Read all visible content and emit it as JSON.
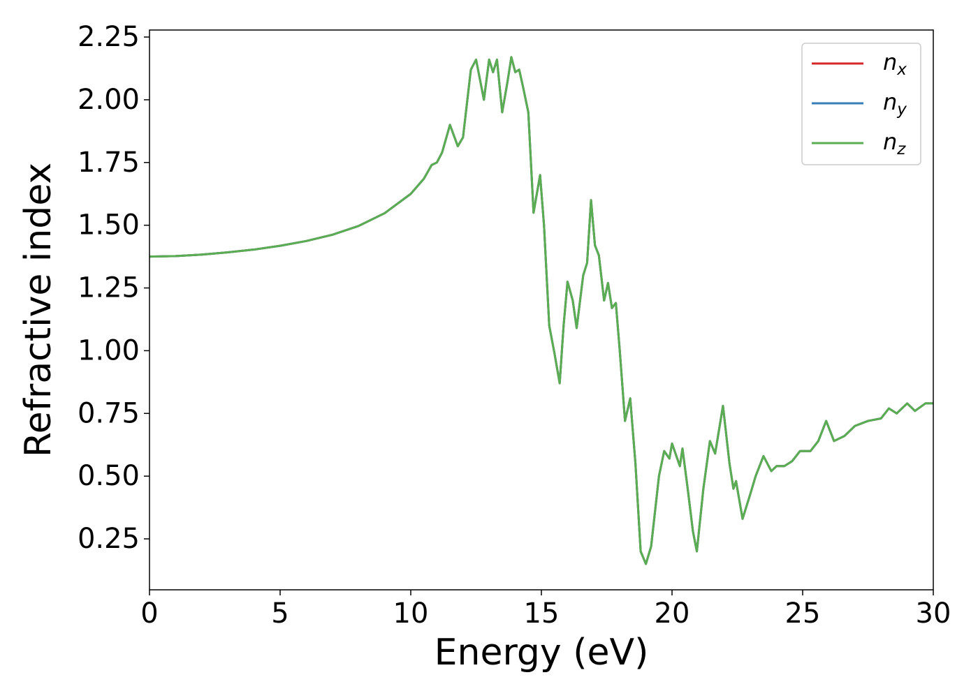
{
  "chart_data": {
    "type": "line",
    "x_label": "Energy (eV)",
    "y_label": "Refractive index",
    "x": [
      0,
      1,
      2,
      3,
      4,
      5,
      6,
      7,
      8,
      9,
      10,
      10.5,
      10.8,
      11.0,
      11.2,
      11.5,
      11.8,
      12.0,
      12.3,
      12.5,
      12.8,
      13.0,
      13.15,
      13.3,
      13.5,
      13.7,
      13.85,
      14.0,
      14.15,
      14.3,
      14.5,
      14.7,
      14.95,
      15.1,
      15.3,
      15.5,
      15.7,
      15.85,
      16.0,
      16.2,
      16.35,
      16.6,
      16.75,
      16.9,
      17.05,
      17.2,
      17.4,
      17.55,
      17.7,
      17.85,
      18.0,
      18.2,
      18.4,
      18.6,
      18.8,
      19.0,
      19.2,
      19.5,
      19.7,
      19.9,
      20.0,
      20.3,
      20.4,
      20.6,
      20.8,
      20.95,
      21.2,
      21.45,
      21.65,
      21.95,
      22.2,
      22.35,
      22.45,
      22.7,
      23.0,
      23.2,
      23.5,
      23.8,
      24.0,
      24.3,
      24.6,
      24.9,
      25.3,
      25.6,
      25.9,
      26.2,
      26.6,
      27.0,
      27.5,
      28.0,
      28.3,
      28.6,
      29.0,
      29.3,
      29.7,
      30.0
    ],
    "series": [
      {
        "name": "nx",
        "color": "#d62728",
        "values": [
          1.375,
          1.377,
          1.383,
          1.392,
          1.403,
          1.418,
          1.437,
          1.462,
          1.497,
          1.548,
          1.625,
          1.685,
          1.74,
          1.75,
          1.79,
          1.9,
          1.815,
          1.85,
          2.12,
          2.16,
          2.0,
          2.16,
          2.11,
          2.16,
          1.95,
          2.07,
          2.17,
          2.11,
          2.12,
          2.05,
          1.95,
          1.55,
          1.7,
          1.5,
          1.1,
          0.99,
          0.87,
          1.1,
          1.275,
          1.2,
          1.09,
          1.3,
          1.35,
          1.6,
          1.42,
          1.38,
          1.2,
          1.27,
          1.17,
          1.19,
          1.0,
          0.72,
          0.81,
          0.55,
          0.2,
          0.15,
          0.22,
          0.5,
          0.6,
          0.57,
          0.63,
          0.54,
          0.61,
          0.45,
          0.28,
          0.2,
          0.45,
          0.64,
          0.59,
          0.78,
          0.55,
          0.45,
          0.48,
          0.33,
          0.43,
          0.5,
          0.58,
          0.52,
          0.54,
          0.54,
          0.56,
          0.6,
          0.6,
          0.64,
          0.72,
          0.64,
          0.66,
          0.7,
          0.72,
          0.73,
          0.77,
          0.75,
          0.79,
          0.76,
          0.79,
          0.79
        ]
      },
      {
        "name": "ny",
        "color": "#377eb8",
        "values": [
          1.375,
          1.377,
          1.383,
          1.392,
          1.403,
          1.418,
          1.437,
          1.462,
          1.497,
          1.548,
          1.625,
          1.685,
          1.74,
          1.75,
          1.79,
          1.9,
          1.815,
          1.85,
          2.12,
          2.16,
          2.0,
          2.16,
          2.11,
          2.16,
          1.95,
          2.07,
          2.17,
          2.11,
          2.12,
          2.05,
          1.95,
          1.55,
          1.7,
          1.5,
          1.1,
          0.99,
          0.87,
          1.1,
          1.275,
          1.2,
          1.09,
          1.3,
          1.35,
          1.6,
          1.42,
          1.38,
          1.2,
          1.27,
          1.17,
          1.19,
          1.0,
          0.72,
          0.81,
          0.55,
          0.2,
          0.15,
          0.22,
          0.5,
          0.6,
          0.57,
          0.63,
          0.54,
          0.61,
          0.45,
          0.28,
          0.2,
          0.45,
          0.64,
          0.59,
          0.78,
          0.55,
          0.45,
          0.48,
          0.33,
          0.43,
          0.5,
          0.58,
          0.52,
          0.54,
          0.54,
          0.56,
          0.6,
          0.6,
          0.64,
          0.72,
          0.64,
          0.66,
          0.7,
          0.72,
          0.73,
          0.77,
          0.75,
          0.79,
          0.76,
          0.79,
          0.79
        ]
      },
      {
        "name": "nz",
        "color": "#5aad52",
        "values": [
          1.375,
          1.377,
          1.383,
          1.392,
          1.403,
          1.418,
          1.437,
          1.462,
          1.497,
          1.548,
          1.625,
          1.685,
          1.74,
          1.75,
          1.79,
          1.9,
          1.815,
          1.85,
          2.12,
          2.16,
          2.0,
          2.16,
          2.11,
          2.16,
          1.95,
          2.07,
          2.17,
          2.11,
          2.12,
          2.05,
          1.95,
          1.55,
          1.7,
          1.5,
          1.1,
          0.99,
          0.87,
          1.1,
          1.275,
          1.2,
          1.09,
          1.3,
          1.35,
          1.6,
          1.42,
          1.38,
          1.2,
          1.27,
          1.17,
          1.19,
          1.0,
          0.72,
          0.81,
          0.55,
          0.2,
          0.15,
          0.22,
          0.5,
          0.6,
          0.57,
          0.63,
          0.54,
          0.61,
          0.45,
          0.28,
          0.2,
          0.45,
          0.64,
          0.59,
          0.78,
          0.55,
          0.45,
          0.48,
          0.33,
          0.43,
          0.5,
          0.58,
          0.52,
          0.54,
          0.54,
          0.56,
          0.6,
          0.6,
          0.64,
          0.72,
          0.64,
          0.66,
          0.7,
          0.72,
          0.73,
          0.77,
          0.75,
          0.79,
          0.76,
          0.79,
          0.79
        ]
      }
    ],
    "xlim": [
      0,
      30
    ],
    "xticks": [
      0,
      5,
      10,
      15,
      20,
      25,
      30
    ],
    "ylim": [
      0.047,
      2.278
    ],
    "yticks": [
      0.25,
      {
        "value": 0.5,
        "label": "0.50"
      },
      0.75,
      {
        "value": 1.0,
        "label": "1.00"
      },
      1.25,
      {
        "value": 1.5,
        "label": "1.50"
      },
      1.75,
      {
        "value": 2.0,
        "label": "2.00"
      },
      2.25
    ],
    "grid": false,
    "legend": "upper right"
  }
}
